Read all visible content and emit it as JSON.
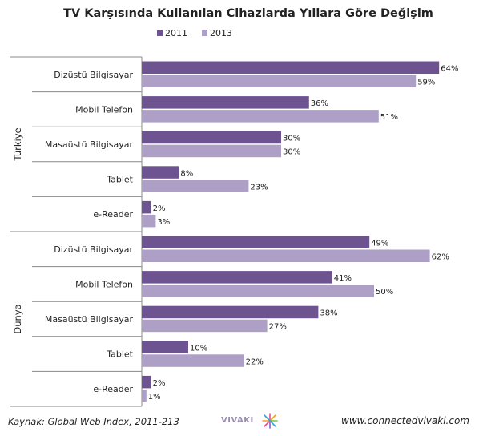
{
  "chart_data": {
    "type": "bar",
    "orientation": "horizontal",
    "title": "TV Karşısında Kullanılan Cihazlarda Yıllara Göre Değişim",
    "legend_position": "top",
    "xlim": [
      0,
      70
    ],
    "grid": false,
    "series": [
      {
        "name": "2011",
        "color": "#6d5491"
      },
      {
        "name": "2013",
        "color": "#ae9fc7"
      }
    ],
    "groups": [
      {
        "label": "Türkiye",
        "categories": [
          "Dizüstü Bilgisayar",
          "Mobil Telefon",
          "Masaüstü Bilgisayar",
          "Tablet",
          "e-Reader"
        ],
        "values_2011": [
          64,
          36,
          30,
          8,
          2
        ],
        "values_2013": [
          59,
          51,
          30,
          23,
          3
        ],
        "labels_2011": [
          "64%",
          "36%",
          "30%",
          "8%",
          "2%"
        ],
        "labels_2013": [
          "59%",
          "51%",
          "30%",
          "23%",
          "3%"
        ]
      },
      {
        "label": "Dünya",
        "categories": [
          "Dizüstü Bilgisayar",
          "Mobil Telefon",
          "Masaüstü Bilgisayar",
          "Tablet",
          "e-Reader"
        ],
        "values_2011": [
          49,
          41,
          38,
          10,
          2
        ],
        "values_2013": [
          62,
          50,
          27,
          22,
          1
        ],
        "labels_2011": [
          "49%",
          "41%",
          "38%",
          "10%",
          "2%"
        ],
        "labels_2013": [
          "62%",
          "50%",
          "27%",
          "22%",
          "1%"
        ]
      }
    ]
  },
  "footer": {
    "source": "Kaynak: Global Web Index, 2011-213",
    "logo": "VIVAKI",
    "url": "www.connectedvivaki.com"
  }
}
